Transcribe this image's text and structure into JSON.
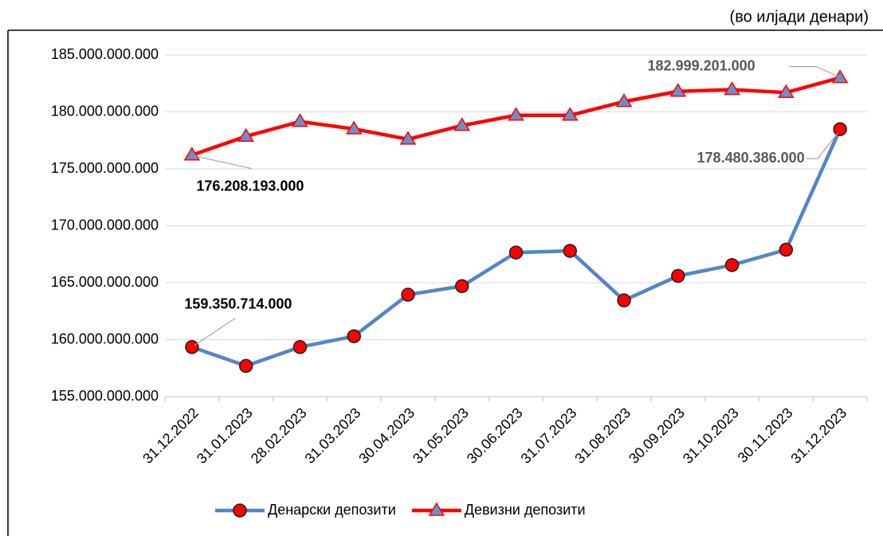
{
  "chart_data": {
    "type": "line",
    "subtitle": "(во илјади денари)",
    "categories": [
      "31.12.2022",
      "31.01.2023",
      "28.02.2023",
      "31.03.2023",
      "30.04.2023",
      "31.05.2023",
      "30.06.2023",
      "31.07.2023",
      "31.08.2023",
      "30.09.2023",
      "31.10.2023",
      "30.11.2023",
      "31.12.2023"
    ],
    "series": [
      {
        "name": "Денарски депозити",
        "color": "#5585c5",
        "marker": "circle",
        "marker_color": "#ff0000",
        "values": [
          159350714000,
          157700000000,
          159350000000,
          160300000000,
          163950000000,
          164700000000,
          167650000000,
          167800000000,
          163450000000,
          165600000000,
          166550000000,
          167900000000,
          178480386000
        ],
        "value_labels": [
          "159.350.714.000",
          null,
          null,
          null,
          null,
          null,
          null,
          null,
          null,
          null,
          null,
          null,
          "178.480.386.000"
        ]
      },
      {
        "name": "Девизни депозити",
        "color": "#ff0000",
        "marker": "triangle",
        "marker_color": "#6b8fc7",
        "values": [
          176208193000,
          177850000000,
          179150000000,
          178500000000,
          177600000000,
          178800000000,
          179700000000,
          179700000000,
          180900000000,
          181800000000,
          181950000000,
          181700000000,
          182999201000
        ],
        "value_labels": [
          "176.208.193.000",
          null,
          null,
          null,
          null,
          null,
          null,
          null,
          null,
          null,
          null,
          null,
          "182.999.201.000"
        ]
      }
    ],
    "ylim": [
      155000000000,
      185000000000
    ],
    "yticks": [
      {
        "value": 155000000000,
        "label": "155.000.000.000"
      },
      {
        "value": 160000000000,
        "label": "160.000.000.000"
      },
      {
        "value": 165000000000,
        "label": "165.000.000.000"
      },
      {
        "value": 170000000000,
        "label": "170.000.000.000"
      },
      {
        "value": 175000000000,
        "label": "175.000.000.000"
      },
      {
        "value": 180000000000,
        "label": "180.000.000.000"
      },
      {
        "value": 185000000000,
        "label": "185.000.000.000"
      }
    ],
    "grid": true,
    "legend": "bottom"
  }
}
